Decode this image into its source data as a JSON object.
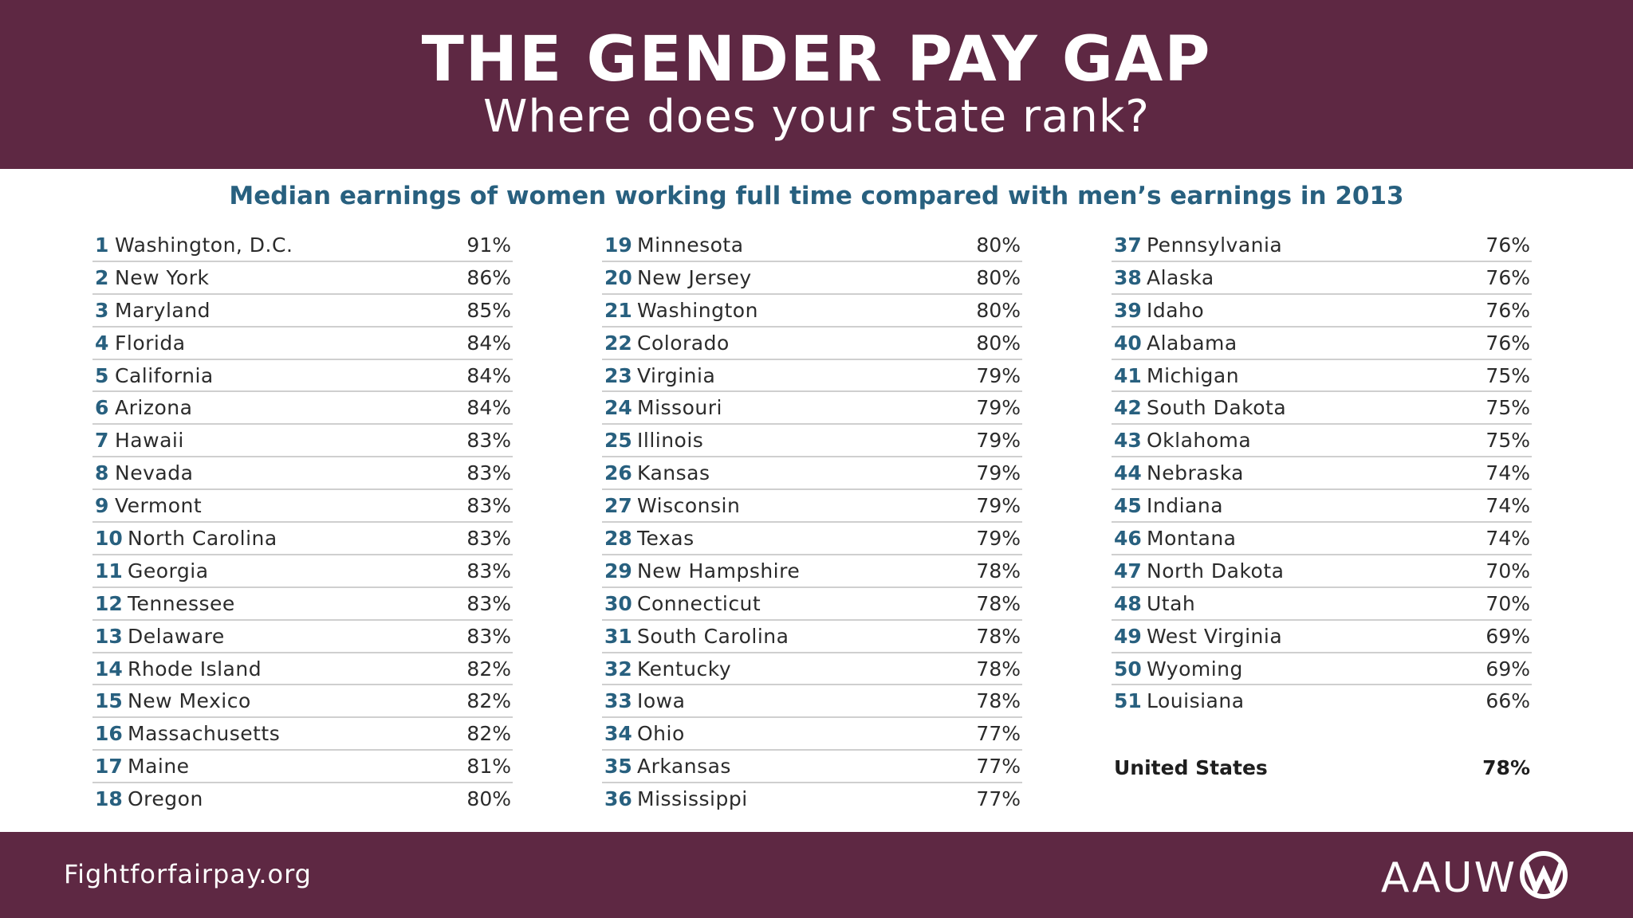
{
  "header": {
    "title": "THE GENDER PAY GAP",
    "subtitle": "Where does your state rank?"
  },
  "chart_heading": "Median earnings of women working full time compared with men’s earnings in 2013",
  "columns": [
    [
      {
        "rank": "1",
        "name": "Washington, D.C.",
        "pct": "91%"
      },
      {
        "rank": "2",
        "name": "New York",
        "pct": "86%"
      },
      {
        "rank": "3",
        "name": "Maryland",
        "pct": "85%"
      },
      {
        "rank": "4",
        "name": "Florida",
        "pct": "84%"
      },
      {
        "rank": "5",
        "name": "California",
        "pct": "84%"
      },
      {
        "rank": "6",
        "name": "Arizona",
        "pct": "84%"
      },
      {
        "rank": "7",
        "name": "Hawaii",
        "pct": "83%"
      },
      {
        "rank": "8",
        "name": "Nevada",
        "pct": "83%"
      },
      {
        "rank": "9",
        "name": "Vermont",
        "pct": "83%"
      },
      {
        "rank": "10",
        "name": "North Carolina",
        "pct": "83%"
      },
      {
        "rank": "11",
        "name": "Georgia",
        "pct": "83%"
      },
      {
        "rank": "12",
        "name": "Tennessee",
        "pct": "83%"
      },
      {
        "rank": "13",
        "name": "Delaware",
        "pct": "83%"
      },
      {
        "rank": "14",
        "name": "Rhode Island",
        "pct": "82%"
      },
      {
        "rank": "15",
        "name": "New Mexico",
        "pct": "82%"
      },
      {
        "rank": "16",
        "name": "Massachusetts",
        "pct": "82%"
      },
      {
        "rank": "17",
        "name": "Maine",
        "pct": "81%"
      },
      {
        "rank": "18",
        "name": "Oregon",
        "pct": "80%"
      }
    ],
    [
      {
        "rank": "19",
        "name": "Minnesota",
        "pct": "80%"
      },
      {
        "rank": "20",
        "name": "New Jersey",
        "pct": "80%"
      },
      {
        "rank": "21",
        "name": "Washington",
        "pct": "80%"
      },
      {
        "rank": "22",
        "name": "Colorado",
        "pct": "80%"
      },
      {
        "rank": "23",
        "name": "Virginia",
        "pct": "79%"
      },
      {
        "rank": "24",
        "name": "Missouri",
        "pct": "79%"
      },
      {
        "rank": "25",
        "name": "Illinois",
        "pct": "79%"
      },
      {
        "rank": "26",
        "name": "Kansas",
        "pct": "79%"
      },
      {
        "rank": "27",
        "name": "Wisconsin",
        "pct": "79%"
      },
      {
        "rank": "28",
        "name": "Texas",
        "pct": "79%"
      },
      {
        "rank": "29",
        "name": "New Hampshire",
        "pct": "78%"
      },
      {
        "rank": "30",
        "name": "Connecticut",
        "pct": "78%"
      },
      {
        "rank": "31",
        "name": "South Carolina",
        "pct": "78%"
      },
      {
        "rank": "32",
        "name": "Kentucky",
        "pct": "78%"
      },
      {
        "rank": "33",
        "name": "Iowa",
        "pct": "78%"
      },
      {
        "rank": "34",
        "name": "Ohio",
        "pct": "77%"
      },
      {
        "rank": "35",
        "name": "Arkansas",
        "pct": "77%"
      },
      {
        "rank": "36",
        "name": "Mississippi",
        "pct": "77%"
      }
    ],
    [
      {
        "rank": "37",
        "name": "Pennsylvania",
        "pct": "76%"
      },
      {
        "rank": "38",
        "name": "Alaska",
        "pct": "76%"
      },
      {
        "rank": "39",
        "name": "Idaho",
        "pct": "76%"
      },
      {
        "rank": "40",
        "name": "Alabama",
        "pct": "76%"
      },
      {
        "rank": "41",
        "name": "Michigan",
        "pct": "75%"
      },
      {
        "rank": "42",
        "name": "South Dakota",
        "pct": "75%"
      },
      {
        "rank": "43",
        "name": "Oklahoma",
        "pct": "75%"
      },
      {
        "rank": "44",
        "name": "Nebraska",
        "pct": "74%"
      },
      {
        "rank": "45",
        "name": "Indiana",
        "pct": "74%"
      },
      {
        "rank": "46",
        "name": "Montana",
        "pct": "74%"
      },
      {
        "rank": "47",
        "name": "North Dakota",
        "pct": "70%"
      },
      {
        "rank": "48",
        "name": "Utah",
        "pct": "70%"
      },
      {
        "rank": "49",
        "name": "West Virginia",
        "pct": "69%"
      },
      {
        "rank": "50",
        "name": "Wyoming",
        "pct": "69%"
      },
      {
        "rank": "51",
        "name": "Louisiana",
        "pct": "66%"
      }
    ]
  ],
  "us_total": {
    "name": "United States",
    "pct": "78%"
  },
  "footer": {
    "site": "Fightforfairpay.org",
    "logo_text": "AAUW"
  },
  "colors": {
    "brand": "#5e2843",
    "accent": "#28607f",
    "divider": "#cfcfcf"
  }
}
